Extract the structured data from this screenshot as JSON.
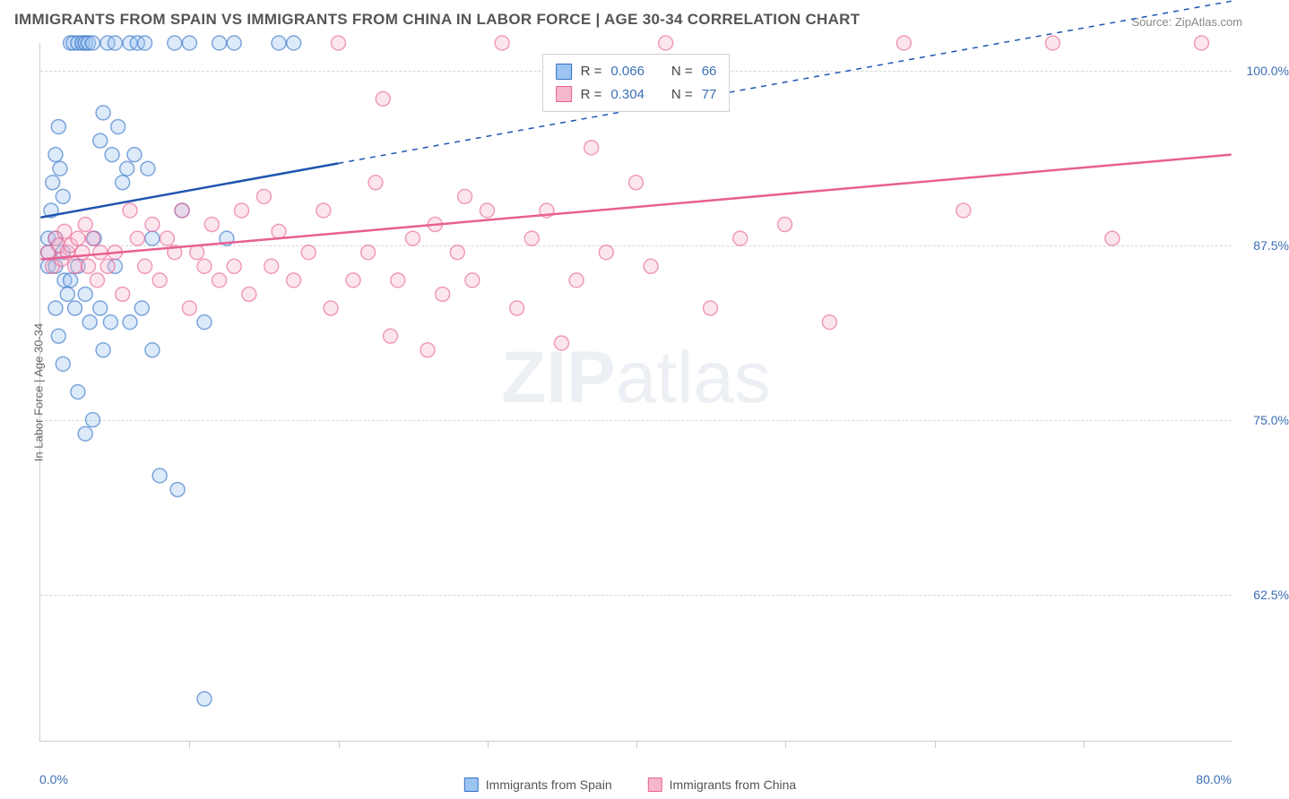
{
  "title": "IMMIGRANTS FROM SPAIN VS IMMIGRANTS FROM CHINA IN LABOR FORCE | AGE 30-34 CORRELATION CHART",
  "source": "Source: ZipAtlas.com",
  "y_axis_title": "In Labor Force | Age 30-34",
  "watermark_a": "ZIP",
  "watermark_b": "atlas",
  "chart": {
    "type": "scatter",
    "background_color": "#ffffff",
    "grid_color": "#d8d8d8",
    "axis_color": "#cccccc",
    "text_color": "#555555",
    "value_color": "#3b6fb6",
    "xlim": [
      0,
      80
    ],
    "ylim": [
      52,
      102
    ],
    "x_ticks": [
      0,
      10,
      20,
      30,
      40,
      50,
      60,
      70,
      80
    ],
    "x_tick_labels": {
      "0": "0.0%",
      "80": "80.0%"
    },
    "y_ticks": [
      62.5,
      75.0,
      87.5,
      100.0
    ],
    "y_tick_labels": [
      "62.5%",
      "75.0%",
      "87.5%",
      "100.0%"
    ],
    "marker_radius": 8,
    "marker_opacity": 0.35,
    "marker_stroke_width": 1.5,
    "line_width": 2.5,
    "series": [
      {
        "name": "Immigrants from Spain",
        "color_fill": "#9dc3f0",
        "color_stroke": "#2f6fc4",
        "line_color": "#1f55b0",
        "R": "0.066",
        "N": "66",
        "trend": {
          "x1": 0,
          "y1": 89.5,
          "x2": 80,
          "y2": 105,
          "solid_until_x": 20
        },
        "points": [
          [
            0.5,
            87
          ],
          [
            0.5,
            88
          ],
          [
            0.5,
            86
          ],
          [
            0.7,
            90
          ],
          [
            0.8,
            92
          ],
          [
            1,
            94
          ],
          [
            1,
            88
          ],
          [
            1,
            86
          ],
          [
            1.2,
            96
          ],
          [
            1.3,
            93
          ],
          [
            1.5,
            91
          ],
          [
            1.5,
            87
          ],
          [
            1.6,
            85
          ],
          [
            1.8,
            84
          ],
          [
            2,
            102
          ],
          [
            2.2,
            102
          ],
          [
            2.5,
            102
          ],
          [
            2.8,
            102
          ],
          [
            3,
            102
          ],
          [
            3.2,
            102
          ],
          [
            3.5,
            102
          ],
          [
            4,
            95
          ],
          [
            4.2,
            97
          ],
          [
            4.5,
            102
          ],
          [
            4.8,
            94
          ],
          [
            5,
            102
          ],
          [
            5.2,
            96
          ],
          [
            5.5,
            92
          ],
          [
            5.8,
            93
          ],
          [
            6,
            102
          ],
          [
            6.3,
            94
          ],
          [
            6.5,
            102
          ],
          [
            7,
            102
          ],
          [
            7.2,
            93
          ],
          [
            7.5,
            88
          ],
          [
            1,
            83
          ],
          [
            1.2,
            81
          ],
          [
            1.5,
            79
          ],
          [
            2,
            85
          ],
          [
            2.3,
            83
          ],
          [
            2.5,
            86
          ],
          [
            3,
            84
          ],
          [
            3.3,
            82
          ],
          [
            3.6,
            88
          ],
          [
            4,
            83
          ],
          [
            4.2,
            80
          ],
          [
            4.7,
            82
          ],
          [
            5,
            86
          ],
          [
            9,
            102
          ],
          [
            9.5,
            90
          ],
          [
            10,
            102
          ],
          [
            11,
            82
          ],
          [
            12,
            102
          ],
          [
            12.5,
            88
          ],
          [
            13,
            102
          ],
          [
            16,
            102
          ],
          [
            17,
            102
          ],
          [
            6,
            82
          ],
          [
            6.8,
            83
          ],
          [
            7.5,
            80
          ],
          [
            8,
            71
          ],
          [
            9.2,
            70
          ],
          [
            2.5,
            77
          ],
          [
            3,
            74
          ],
          [
            3.5,
            75
          ],
          [
            11,
            55
          ]
        ]
      },
      {
        "name": "Immigrants from China",
        "color_fill": "#f5b8cb",
        "color_stroke": "#e85f92",
        "line_color": "#e85f92",
        "R": "0.304",
        "N": "77",
        "trend": {
          "x1": 0,
          "y1": 86.5,
          "x2": 80,
          "y2": 94,
          "solid_until_x": 80
        },
        "points": [
          [
            0.5,
            87
          ],
          [
            0.8,
            86
          ],
          [
            1,
            88
          ],
          [
            1.2,
            87.5
          ],
          [
            1.4,
            86.5
          ],
          [
            1.6,
            88.5
          ],
          [
            1.8,
            87
          ],
          [
            2,
            87.5
          ],
          [
            2.3,
            86
          ],
          [
            2.5,
            88
          ],
          [
            2.8,
            87
          ],
          [
            3,
            89
          ],
          [
            3.2,
            86
          ],
          [
            3.5,
            88
          ],
          [
            3.8,
            85
          ],
          [
            4,
            87
          ],
          [
            4.5,
            86
          ],
          [
            5,
            87
          ],
          [
            5.5,
            84
          ],
          [
            6,
            90
          ],
          [
            6.5,
            88
          ],
          [
            7,
            86
          ],
          [
            7.5,
            89
          ],
          [
            8,
            85
          ],
          [
            8.5,
            88
          ],
          [
            9,
            87
          ],
          [
            9.5,
            90
          ],
          [
            10,
            83
          ],
          [
            10.5,
            87
          ],
          [
            11,
            86
          ],
          [
            11.5,
            89
          ],
          [
            12,
            85
          ],
          [
            13,
            86
          ],
          [
            13.5,
            90
          ],
          [
            14,
            84
          ],
          [
            15,
            91
          ],
          [
            15.5,
            86
          ],
          [
            16,
            88.5
          ],
          [
            17,
            85
          ],
          [
            18,
            87
          ],
          [
            19,
            90
          ],
          [
            19.5,
            83
          ],
          [
            20,
            102
          ],
          [
            21,
            85
          ],
          [
            22,
            87
          ],
          [
            22.5,
            92
          ],
          [
            23,
            98
          ],
          [
            23.5,
            81
          ],
          [
            24,
            85
          ],
          [
            25,
            88
          ],
          [
            26,
            80
          ],
          [
            26.5,
            89
          ],
          [
            27,
            84
          ],
          [
            28,
            87
          ],
          [
            28.5,
            91
          ],
          [
            29,
            85
          ],
          [
            30,
            90
          ],
          [
            31,
            102
          ],
          [
            32,
            83
          ],
          [
            33,
            88
          ],
          [
            34,
            90
          ],
          [
            35,
            80.5
          ],
          [
            36,
            85
          ],
          [
            37,
            94.5
          ],
          [
            38,
            87
          ],
          [
            40,
            92
          ],
          [
            41,
            86
          ],
          [
            42,
            102
          ],
          [
            45,
            83
          ],
          [
            47,
            88
          ],
          [
            50,
            89
          ],
          [
            53,
            82
          ],
          [
            58,
            102
          ],
          [
            62,
            90
          ],
          [
            68,
            102
          ],
          [
            72,
            88
          ],
          [
            78,
            102
          ]
        ]
      }
    ]
  },
  "legend_bottom": [
    {
      "label": "Immigrants from Spain",
      "fill": "#9dc3f0",
      "stroke": "#2f6fc4"
    },
    {
      "label": "Immigrants from China",
      "fill": "#f5b8cb",
      "stroke": "#e85f92"
    }
  ]
}
